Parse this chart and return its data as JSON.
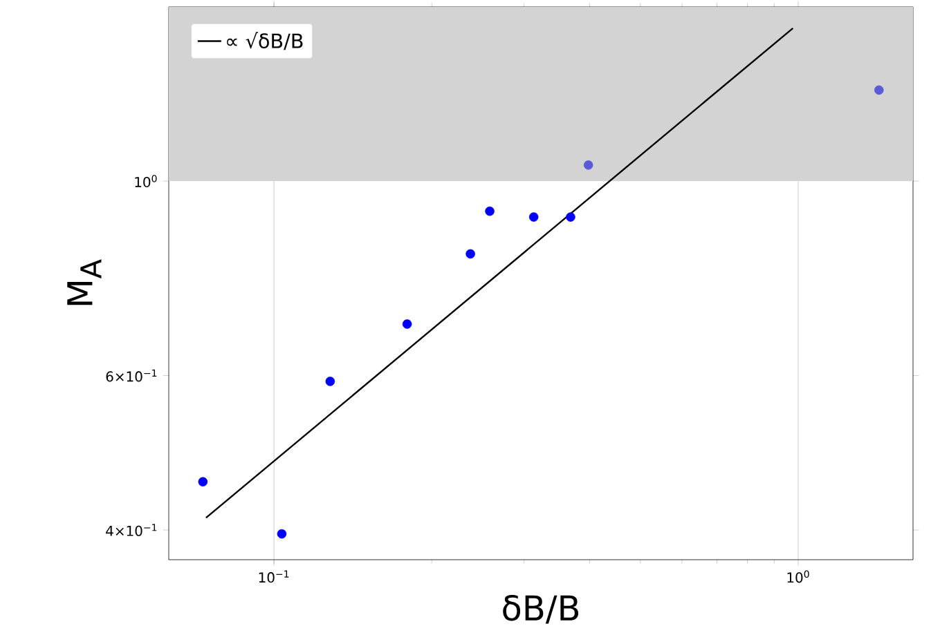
{
  "chart_data": {
    "type": "scatter",
    "xlabel": "δB/B",
    "ylabel": "M$_{A}$",
    "log": "xy",
    "grid": "x",
    "legend": "top left",
    "xlim": [
      0.063,
      1.656
    ],
    "ylim": [
      0.37,
      1.58
    ],
    "xticks": [
      {
        "value": 0.1,
        "label": "10$^{−1}$"
      },
      {
        "value": 1,
        "label": "10$^{0}$"
      }
    ],
    "yticks": [
      {
        "value": 0.4,
        "label": "4×10$^{−1}$"
      },
      {
        "value": 0.6,
        "label": "6×10$^{−1}$"
      },
      {
        "value": 1,
        "label": "10$^{0}$"
      }
    ],
    "bands": [
      {
        "axis": "y",
        "from": 1,
        "to": 1.58,
        "color": "#d3d3d3"
      }
    ],
    "series": [
      {
        "marker": "circle",
        "x": [
          0.0732,
          0.1035,
          0.128,
          0.1795,
          0.237,
          0.258,
          0.313,
          0.368,
          0.398,
          1.426
        ],
        "values": [
          0.454,
          0.396,
          0.591,
          0.687,
          0.826,
          0.924,
          0.91,
          0.91,
          1.043,
          1.27
        ],
        "colors": [
          "#0000ff",
          "#0000ff",
          "#0000ff",
          "#0000ff",
          "#0000ff",
          "#0000ff",
          "#0000ff",
          "#0000ff",
          "#5a5ad6",
          "#5a5ad6"
        ]
      },
      {
        "type": "line",
        "name": "∝ √δB/B",
        "color": "#000000",
        "x": [
          0.0742,
          0.977
        ],
        "values": [
          0.413,
          1.494
        ]
      }
    ]
  }
}
